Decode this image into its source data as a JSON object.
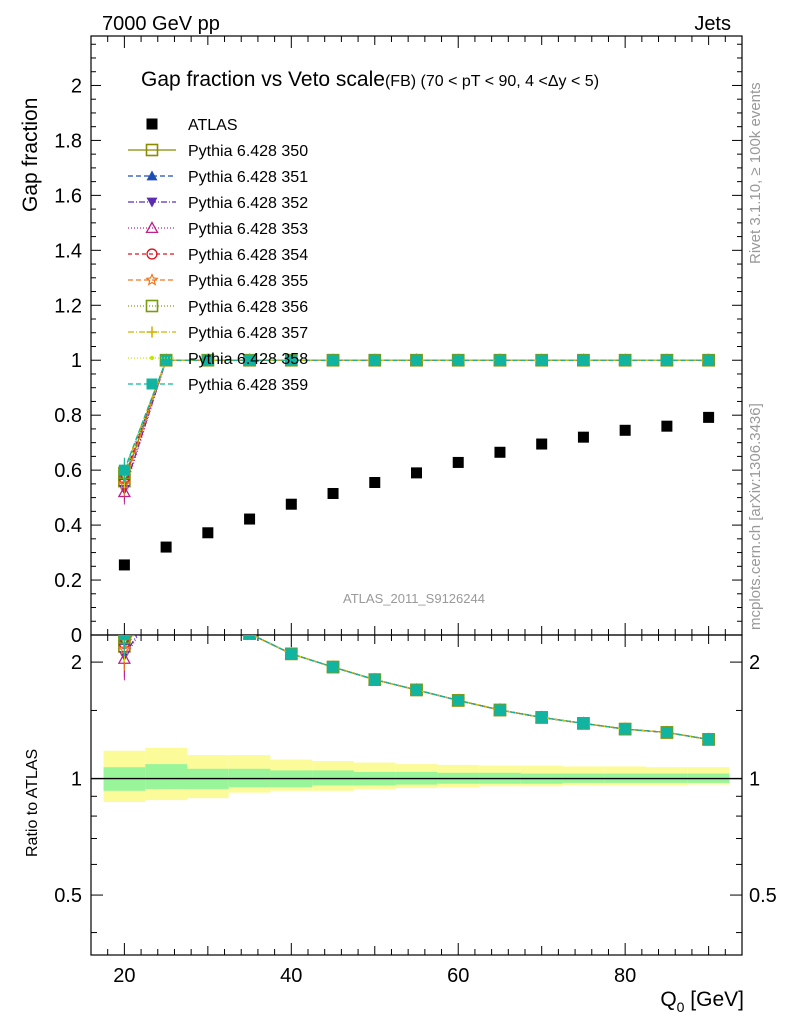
{
  "header": {
    "left": "7000 GeV pp",
    "right": "Jets",
    "side_rivet": "Rivet 3.1.10, ≥ 100k events",
    "side_mcplots": "mcplots.cern.ch [arXiv:1306.3436]",
    "watermark": "ATLAS_2011_S9126244"
  },
  "chart_data": {
    "type": "scatter",
    "title": "Gap fraction vs Veto scale",
    "title_suffix": "(FB) (70 < pT <  90, 4 <Δy < 5)",
    "xlabel": "Q",
    "xlabel_sub": "0",
    "xlabel_unit": " [GeV]",
    "ylabel": "Gap fraction",
    "ratio_ylabel": "Ratio to ATLAS",
    "xlim": [
      16,
      94
    ],
    "ylim": [
      0,
      2.18
    ],
    "ratio_ylim": [
      0.35,
      2.35
    ],
    "x_ticks": [
      20,
      40,
      60,
      80
    ],
    "y_ticks": [
      0,
      0.2,
      0.4,
      0.6,
      0.8,
      1,
      1.2,
      1.4,
      1.6,
      1.8,
      2
    ],
    "y_tick_labels": [
      "0",
      "0.2",
      "0.4",
      "0.6",
      "0.8",
      "1",
      "1.2",
      "1.4",
      "1.6",
      "1.8",
      "2"
    ],
    "ratio_ticks": [
      0.5,
      1,
      2
    ],
    "ratio_tick_labels": [
      "0.5",
      "1",
      "2"
    ],
    "x": [
      20,
      25,
      30,
      35,
      40,
      45,
      50,
      55,
      60,
      65,
      70,
      75,
      80,
      85,
      90
    ],
    "data": {
      "name": "ATLAS",
      "values": [
        0.255,
        0.32,
        0.372,
        0.422,
        0.476,
        0.515,
        0.555,
        0.59,
        0.628,
        0.665,
        0.695,
        0.72,
        0.745,
        0.76,
        0.792
      ],
      "band_edges": [
        17.5,
        22.5,
        27.5,
        32.5,
        37.5,
        42.5,
        47.5,
        52.5,
        57.5,
        62.5,
        67.5,
        72.5,
        77.5,
        82.5,
        87.5,
        92.5
      ],
      "stat_lo": [
        0.93,
        0.94,
        0.94,
        0.95,
        0.95,
        0.96,
        0.96,
        0.965,
        0.97,
        0.97,
        0.97,
        0.975,
        0.975,
        0.975,
        0.975
      ],
      "stat_hi": [
        1.07,
        1.09,
        1.06,
        1.06,
        1.05,
        1.05,
        1.04,
        1.04,
        1.035,
        1.035,
        1.03,
        1.03,
        1.03,
        1.03,
        1.03
      ],
      "tot_lo": [
        0.87,
        0.88,
        0.89,
        0.92,
        0.93,
        0.93,
        0.94,
        0.945,
        0.95,
        0.955,
        0.955,
        0.96,
        0.96,
        0.96,
        0.965
      ],
      "tot_hi": [
        1.18,
        1.2,
        1.15,
        1.15,
        1.12,
        1.11,
        1.1,
        1.09,
        1.085,
        1.08,
        1.08,
        1.075,
        1.075,
        1.07,
        1.07
      ],
      "color": "#000000"
    },
    "series": [
      {
        "name": "Pythia 6.428 350",
        "color": "#8b8b00",
        "marker": "square-open",
        "dash": "",
        "y20": 0.56
      },
      {
        "name": "Pythia 6.428 351",
        "color": "#1f4fb4",
        "marker": "triangle-up",
        "dash": "5,3",
        "y20": 0.58
      },
      {
        "name": "Pythia 6.428 352",
        "color": "#5a2db0",
        "marker": "triangle-down",
        "dash": "6,2,1,2",
        "y20": 0.53
      },
      {
        "name": "Pythia 6.428 353",
        "color": "#c0208a",
        "marker": "triangle-open",
        "dash": "1,2",
        "y20": 0.52
      },
      {
        "name": "Pythia 6.428 354",
        "color": "#e0141e",
        "marker": "circle-open",
        "dash": "4,3",
        "y20": 0.57
      },
      {
        "name": "Pythia 6.428 355",
        "color": "#f07820",
        "marker": "star-open",
        "dash": "5,3",
        "y20": 0.55
      },
      {
        "name": "Pythia 6.428 356",
        "color": "#7a9a10",
        "marker": "square-open",
        "dash": "1,2",
        "y20": 0.59
      },
      {
        "name": "Pythia 6.428 357",
        "color": "#d2b400",
        "marker": "cross",
        "dash": "6,2,1,2",
        "y20": 0.6
      },
      {
        "name": "Pythia 6.428 358",
        "color": "#c8e600",
        "marker": "dot",
        "dash": "1,2",
        "y20": 0.58
      },
      {
        "name": "Pythia 6.428 359",
        "color": "#10b4a0",
        "marker": "square-filled",
        "dash": "5,3",
        "y20": 0.6
      }
    ],
    "mc_values_after_20": 1.0,
    "colors": {
      "stat_band": "#99f599",
      "total_band": "#fbfb99",
      "axis": "#000000",
      "grey_text": "#999999"
    }
  }
}
